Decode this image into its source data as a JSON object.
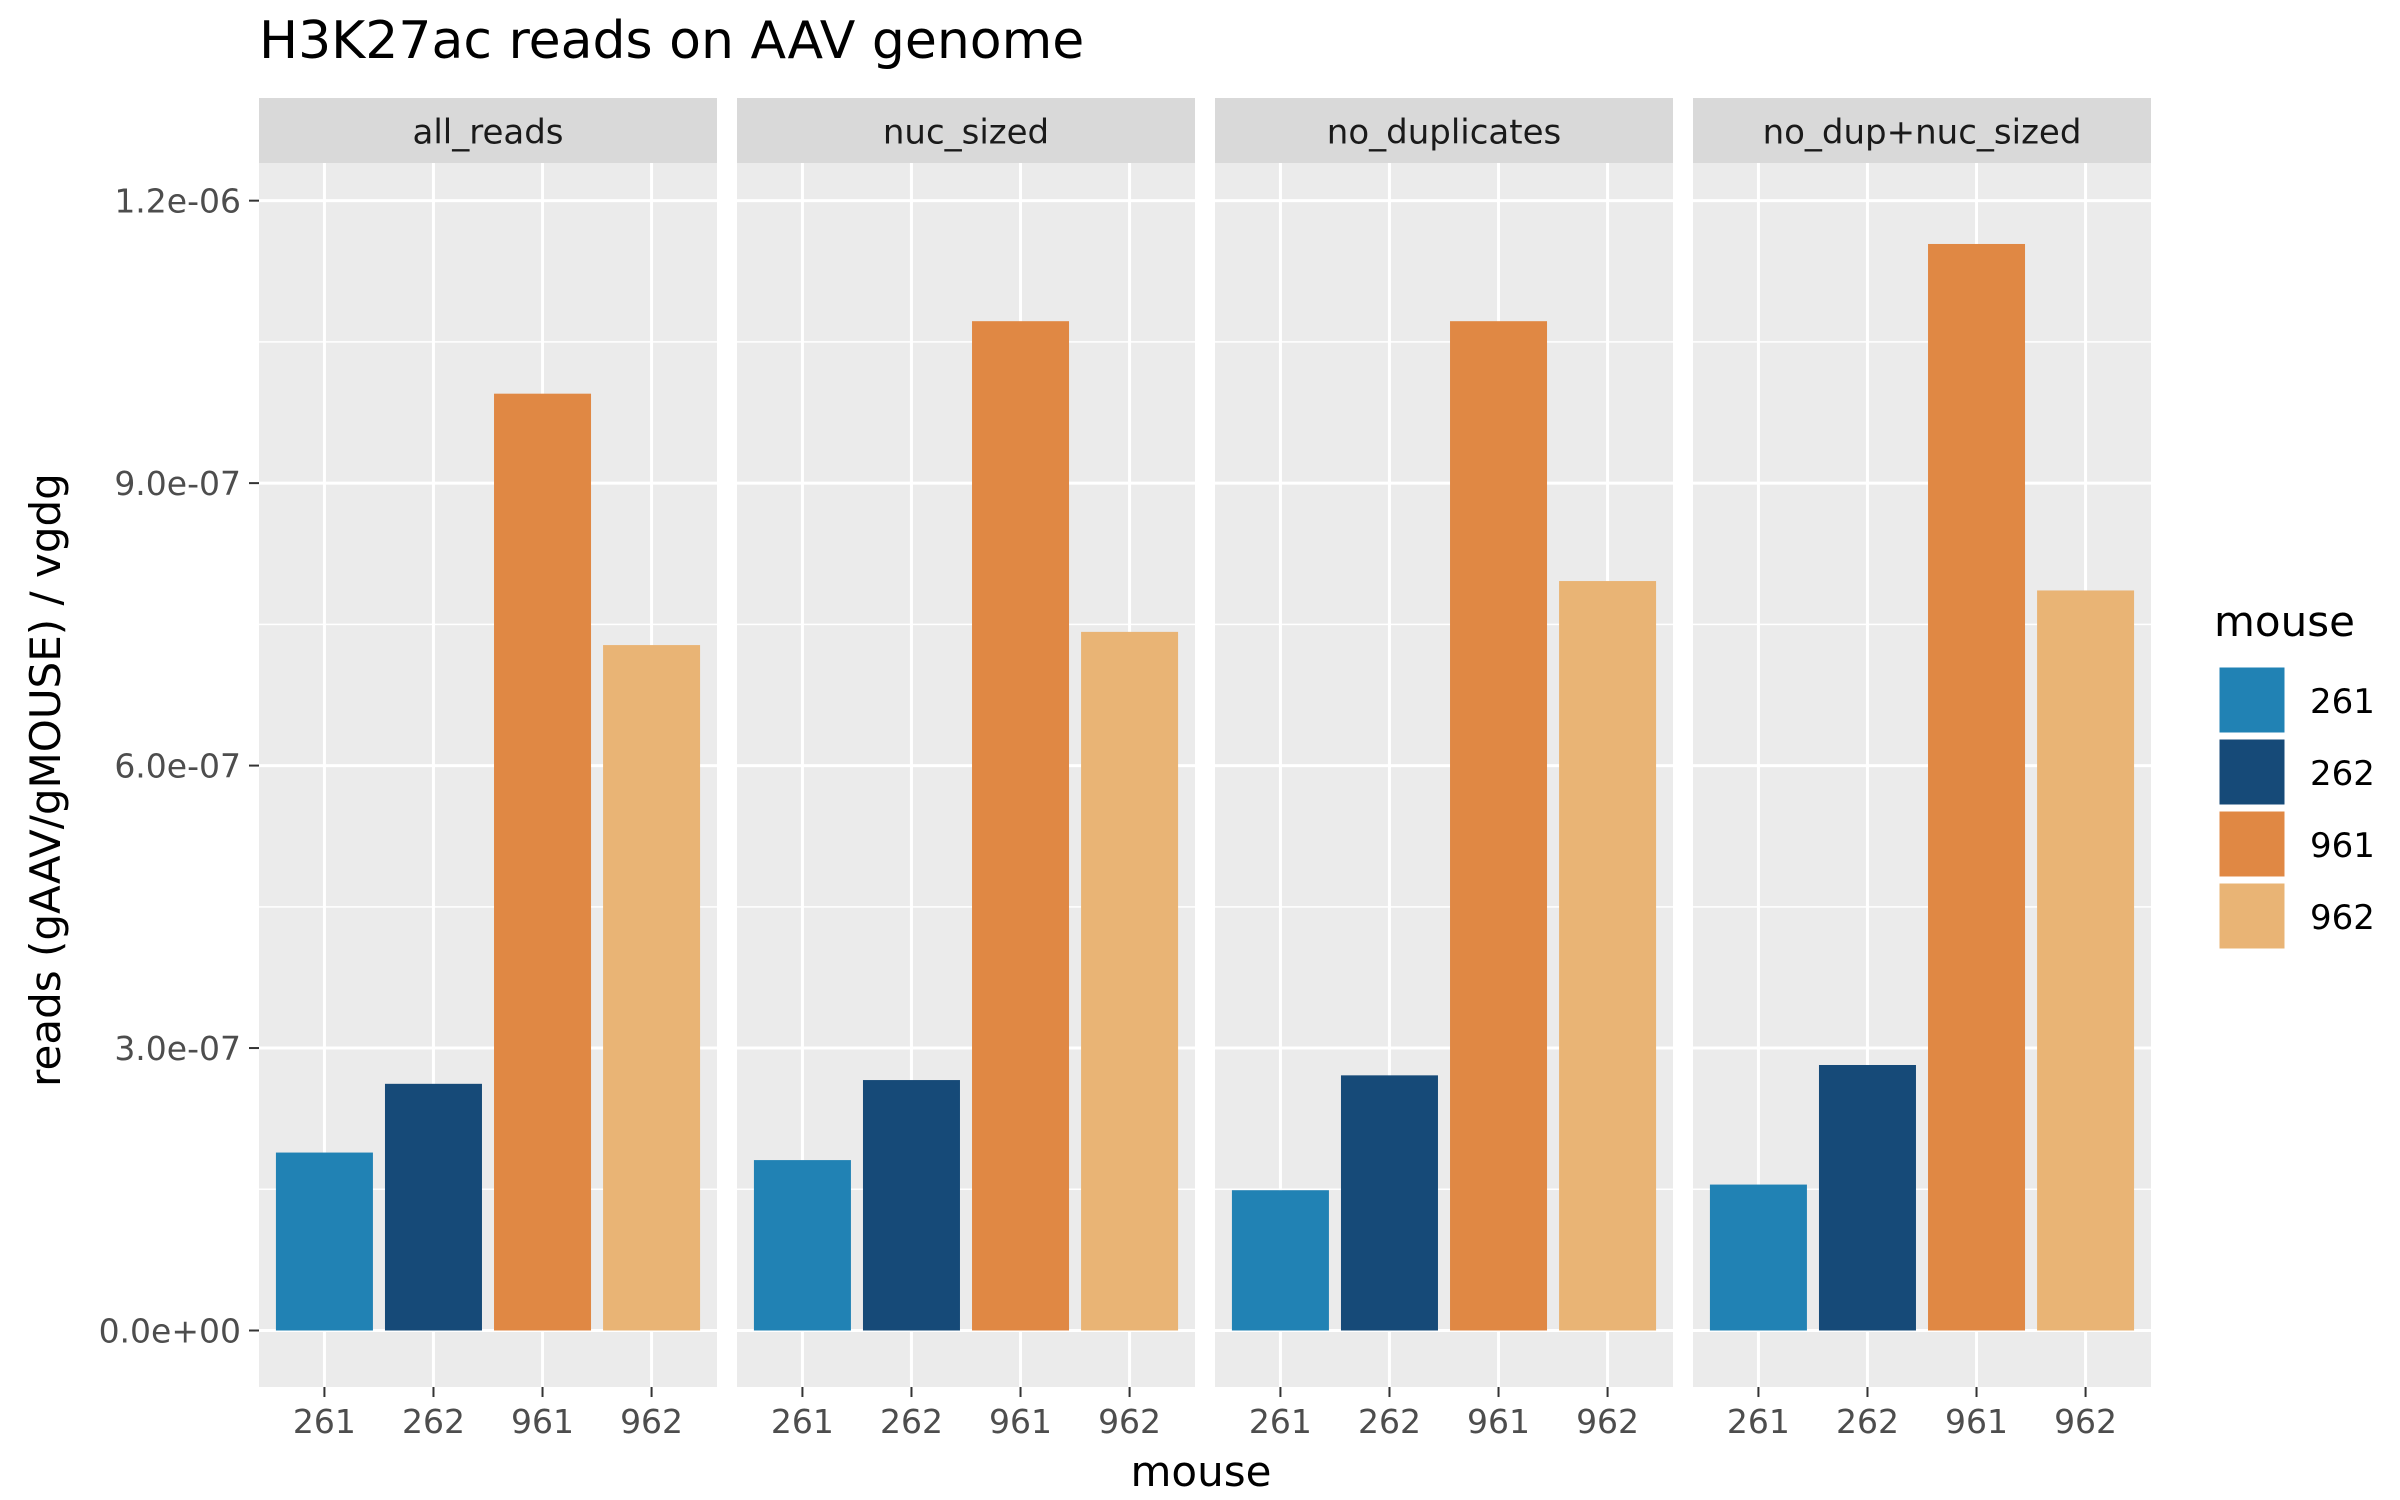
{
  "chart_data": {
    "type": "bar",
    "title": "H3K27ac reads on AAV genome",
    "xlabel": "mouse",
    "ylabel": "reads (gAAV/gMOUSE) / vgdg",
    "ylim": [
      -6e-08,
      1.24e-06
    ],
    "y_ticks": [
      0,
      3e-07,
      6e-07,
      9e-07,
      1.2e-06
    ],
    "y_tick_labels": [
      "0.0e+00",
      "3.0e-07",
      "6.0e-07",
      "9.0e-07",
      "1.2e-06"
    ],
    "categories": [
      "261",
      "262",
      "961",
      "962"
    ],
    "colors": {
      "261": "#2182b4",
      "262": "#164a78",
      "961": "#e08844",
      "962": "#e9b475"
    },
    "panel_background": "#ebebeb",
    "strip_background": "#d9d9d9",
    "grid": true,
    "legend": {
      "title": "mouse",
      "position": "right",
      "entries": [
        "261",
        "262",
        "961",
        "962"
      ]
    },
    "facets": [
      {
        "name": "all_reads",
        "values": [
          1.89e-07,
          2.62e-07,
          9.95e-07,
          7.28e-07
        ]
      },
      {
        "name": "nuc_sized",
        "values": [
          1.81e-07,
          2.66e-07,
          1.072e-06,
          7.42e-07
        ]
      },
      {
        "name": "no_duplicates",
        "values": [
          1.49e-07,
          2.71e-07,
          1.072e-06,
          7.96e-07
        ]
      },
      {
        "name": "no_dup+nuc_sized",
        "values": [
          1.55e-07,
          2.82e-07,
          1.154e-06,
          7.86e-07
        ]
      }
    ]
  }
}
